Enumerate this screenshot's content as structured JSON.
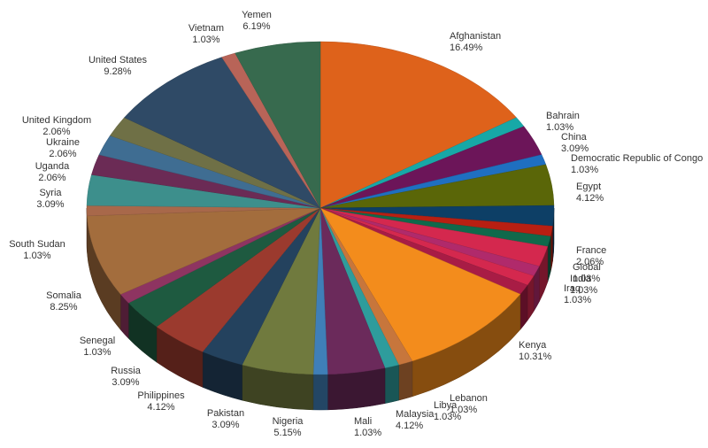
{
  "chart_data": {
    "type": "pie",
    "title": "",
    "style": "3d",
    "legend": "none",
    "slices": [
      {
        "label": "Afghanistan",
        "value": 16.49,
        "display": "16.49%",
        "color": "#de621b"
      },
      {
        "label": "Bahrain",
        "value": 1.03,
        "display": "1.03%",
        "color": "#17a8a7"
      },
      {
        "label": "China",
        "value": 3.09,
        "display": "3.09%",
        "color": "#6c1559"
      },
      {
        "label": "Democratic Republic of Congo",
        "value": 1.03,
        "display": "1.03%",
        "color": "#1f6fc0"
      },
      {
        "label": "Egypt",
        "value": 4.12,
        "display": "4.12%",
        "color": "#5a6608"
      },
      {
        "label": "",
        "value": 2.06,
        "display": "",
        "color": "#0d3f66"
      },
      {
        "label": "",
        "value": 1.03,
        "display": "",
        "color": "#b81f12"
      },
      {
        "label": "",
        "value": 1.03,
        "display": "",
        "color": "#10694b"
      },
      {
        "label": "France",
        "value": 2.06,
        "display": "2.06%",
        "color": "#d4284e"
      },
      {
        "label": "Global",
        "value": 1.03,
        "display": "1.03%",
        "color": "#b02a6b"
      },
      {
        "label": "India",
        "value": 1.03,
        "display": "1.03%",
        "color": "#d4284e"
      },
      {
        "label": "Iraq",
        "value": 1.03,
        "display": "1.03%",
        "color": "#a81c45"
      },
      {
        "label": "Kenya",
        "value": 10.31,
        "display": "10.31%",
        "color": "#f38c1c"
      },
      {
        "label": "Lebanon",
        "value": 1.03,
        "display": "1.03%",
        "color": "#c7763c"
      },
      {
        "label": "Libya",
        "value": 1.03,
        "display": "1.03%",
        "color": "#2e9c9c"
      },
      {
        "label": "Malaysia",
        "value": 4.12,
        "display": "4.12%",
        "color": "#6b2a5b"
      },
      {
        "label": "Mali",
        "value": 1.03,
        "display": "1.03%",
        "color": "#3f7fb8"
      },
      {
        "label": "Nigeria",
        "value": 5.15,
        "display": "5.15%",
        "color": "#707a3e"
      },
      {
        "label": "Pakistan",
        "value": 3.09,
        "display": "3.09%",
        "color": "#24425e"
      },
      {
        "label": "Philippines",
        "value": 4.12,
        "display": "4.12%",
        "color": "#9b3a2e"
      },
      {
        "label": "Russia",
        "value": 3.09,
        "display": "3.09%",
        "color": "#1e5a40"
      },
      {
        "label": "Senegal",
        "value": 1.03,
        "display": "1.03%",
        "color": "#8e3461"
      },
      {
        "label": "Somalia",
        "value": 8.25,
        "display": "8.25%",
        "color": "#a36d3d"
      },
      {
        "label": "South Sudan",
        "value": 1.03,
        "display": "1.03%",
        "color": "#a8684a"
      },
      {
        "label": "Syria",
        "value": 3.09,
        "display": "3.09%",
        "color": "#3d8f8c"
      },
      {
        "label": "Uganda",
        "value": 2.06,
        "display": "2.06%",
        "color": "#6b2b55"
      },
      {
        "label": "Ukraine",
        "value": 2.06,
        "display": "2.06%",
        "color": "#3f6d92"
      },
      {
        "label": "United Kingdom",
        "value": 2.06,
        "display": "2.06%",
        "color": "#6f7046"
      },
      {
        "label": "United States",
        "value": 9.28,
        "display": "9.28%",
        "color": "#2f4a66"
      },
      {
        "label": "Vietnam",
        "value": 1.03,
        "display": "1.03%",
        "color": "#b86458"
      },
      {
        "label": "Yemen",
        "value": 6.19,
        "display": "6.19%",
        "color": "#376a4e"
      }
    ]
  }
}
